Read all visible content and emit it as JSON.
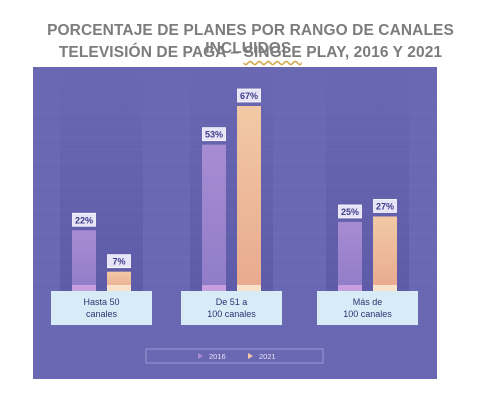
{
  "title": {
    "line1": "PORCENTAJE DE PLANES POR RANGO DE CANALES INCLUIDOS,",
    "line2_pre": "TELEVISIÓN DE PAGA – ",
    "line2_ul": "SINGLE",
    "line2_post": " PLAY, 2016 Y 2021"
  },
  "colors": {
    "panel_bg": "#6a67b3",
    "series_2016": "#a88cd2",
    "series_2016_base": "#c79ee0",
    "series_2021": "#f2c9a4",
    "series_2021_base": "#f8e3ca",
    "label_bg": "#e6e4f6",
    "label_text": "#3f3c8a",
    "category_bg": "#d8ecf8",
    "category_text": "#2d3170",
    "legend_text": "#e6e3f7",
    "grid": "#7c79c0"
  },
  "chart_data": {
    "type": "bar",
    "categories": [
      "Hasta 50\ncanales",
      "De 51 a\n100 canales",
      "Más de\n100 canales"
    ],
    "series": [
      {
        "name": "2016",
        "values": [
          22,
          53,
          25
        ],
        "labels": [
          "22%",
          "53%",
          "25%"
        ]
      },
      {
        "name": "2021",
        "values": [
          7,
          67,
          27
        ],
        "labels": [
          "7%",
          "67%",
          "27%"
        ]
      }
    ],
    "unit": "%",
    "ylim": [
      0,
      70
    ],
    "grid": true,
    "legend": {
      "position": "bottom",
      "items": [
        "2016",
        "2021"
      ]
    }
  }
}
